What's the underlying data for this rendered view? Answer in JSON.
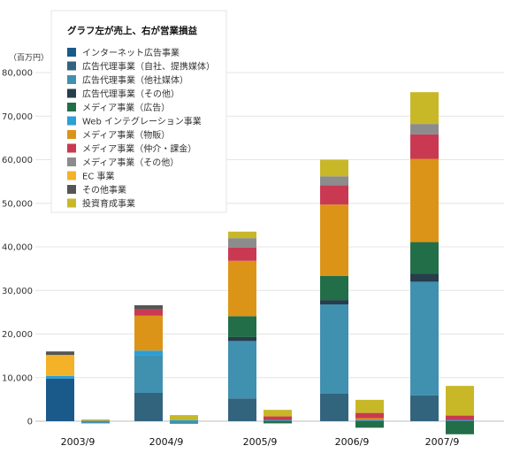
{
  "chart_data": {
    "type": "bar",
    "stacked": true,
    "unit_label": "（百万円）",
    "legend_title": "グラフ左が売上、右が営業損益",
    "legend_placement": "top-left",
    "categories": [
      "2003/9",
      "2004/9",
      "2005/9",
      "2006/9",
      "2007/9"
    ],
    "groups": [
      "売上",
      "営業損益"
    ],
    "ylim": [
      -3000,
      80000
    ],
    "yticks": [
      0,
      10000,
      20000,
      30000,
      40000,
      50000,
      60000,
      70000,
      80000
    ],
    "ytick_labels": [
      "0",
      "10,000",
      "20,000",
      "30,000",
      "40,000",
      "50,000",
      "60,000",
      "70,000",
      "80,000"
    ],
    "grid": true,
    "series": [
      {
        "name": "インターネット広告事業",
        "color": "#1a5a8a",
        "sales": [
          9800,
          0,
          0,
          0,
          0
        ],
        "profit": [
          0,
          0,
          0,
          0,
          0
        ]
      },
      {
        "name": "広告代理事業（自社、提携媒体）",
        "color": "#33647e",
        "sales": [
          0,
          6500,
          5200,
          6300,
          5900
        ],
        "profit": [
          0,
          0,
          0,
          0,
          0
        ]
      },
      {
        "name": "広告代理事業（他社媒体）",
        "color": "#4090b0",
        "sales": [
          0,
          8700,
          13200,
          20500,
          26100
        ],
        "profit": [
          -500,
          -600,
          300,
          300,
          300
        ]
      },
      {
        "name": "広告代理事業（その他）",
        "color": "#263d4c",
        "sales": [
          0,
          0,
          900,
          1000,
          1800
        ],
        "profit": [
          0,
          0,
          0,
          0,
          0
        ]
      },
      {
        "name": "メディア事業（広告）",
        "color": "#226e48",
        "sales": [
          0,
          0,
          4800,
          5500,
          7300
        ],
        "profit": [
          0,
          0,
          -500,
          -1500,
          -3000
        ]
      },
      {
        "name": "Web インテグレーション事業",
        "color": "#2a9fd8",
        "sales": [
          600,
          1000,
          0,
          0,
          0
        ],
        "profit": [
          100,
          200,
          0,
          0,
          0
        ]
      },
      {
        "name": "メディア事業（物販）",
        "color": "#dc9418",
        "sales": [
          0,
          8000,
          12700,
          16400,
          19100
        ],
        "profit": [
          0,
          0,
          0,
          400,
          0
        ]
      },
      {
        "name": "メディア事業（仲介・課金）",
        "color": "#c93a52",
        "sales": [
          0,
          1500,
          3000,
          4400,
          5600
        ],
        "profit": [
          0,
          0,
          800,
          1200,
          1000
        ]
      },
      {
        "name": "メディア事業（その他）",
        "color": "#8c8c8c",
        "sales": [
          0,
          0,
          2200,
          2100,
          2400
        ],
        "profit": [
          0,
          0,
          0,
          0,
          0
        ]
      },
      {
        "name": "EC 事業",
        "color": "#f4b228",
        "sales": [
          4800,
          0,
          0,
          0,
          0
        ],
        "profit": [
          200,
          0,
          0,
          0,
          0
        ]
      },
      {
        "name": "その他事業",
        "color": "#555555",
        "sales": [
          800,
          900,
          0,
          0,
          0
        ],
        "profit": [
          0,
          0,
          0,
          0,
          0
        ]
      },
      {
        "name": "投資育成事業",
        "color": "#c8b828",
        "sales": [
          0,
          0,
          1500,
          3800,
          7300
        ],
        "profit": [
          100,
          1200,
          1500,
          3000,
          6800
        ]
      }
    ]
  }
}
